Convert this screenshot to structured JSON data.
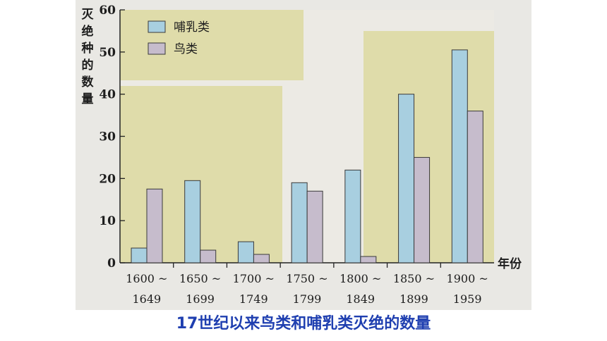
{
  "chart_data": {
    "type": "bar",
    "categories": [
      "1600 ~ 1649",
      "1650 ~ 1699",
      "1700 ~ 1749",
      "1750 ~ 1799",
      "1800 ~ 1849",
      "1850 ~ 1899",
      "1900 ~ 1959"
    ],
    "category_lines": [
      [
        "1600 ~",
        "1649"
      ],
      [
        "1650 ~",
        "1699"
      ],
      [
        "1700 ~",
        "1749"
      ],
      [
        "1750 ~",
        "1799"
      ],
      [
        "1800 ~",
        "1849"
      ],
      [
        "1850 ~",
        "1899"
      ],
      [
        "1900 ~",
        "1959"
      ]
    ],
    "series": [
      {
        "name": "哺乳类",
        "color": "#a8cfe0",
        "values": [
          3.5,
          19.5,
          5,
          19,
          22,
          40,
          50.5
        ]
      },
      {
        "name": "鸟类",
        "color": "#c6bccc",
        "values": [
          17.5,
          3,
          2,
          17,
          1.5,
          25,
          36
        ]
      }
    ],
    "ylabel_chars": [
      "灭",
      "绝",
      "种",
      "的",
      "数",
      "量"
    ],
    "xlabel": "年份",
    "ylim": [
      0,
      60
    ],
    "yticks": [
      0,
      10,
      20,
      30,
      40,
      50,
      60
    ],
    "grid": false,
    "legend_position": "top-left",
    "caption": "17世纪以来鸟类和哺乳类灭绝的数量",
    "highlight_color": "#ddd9a0"
  }
}
